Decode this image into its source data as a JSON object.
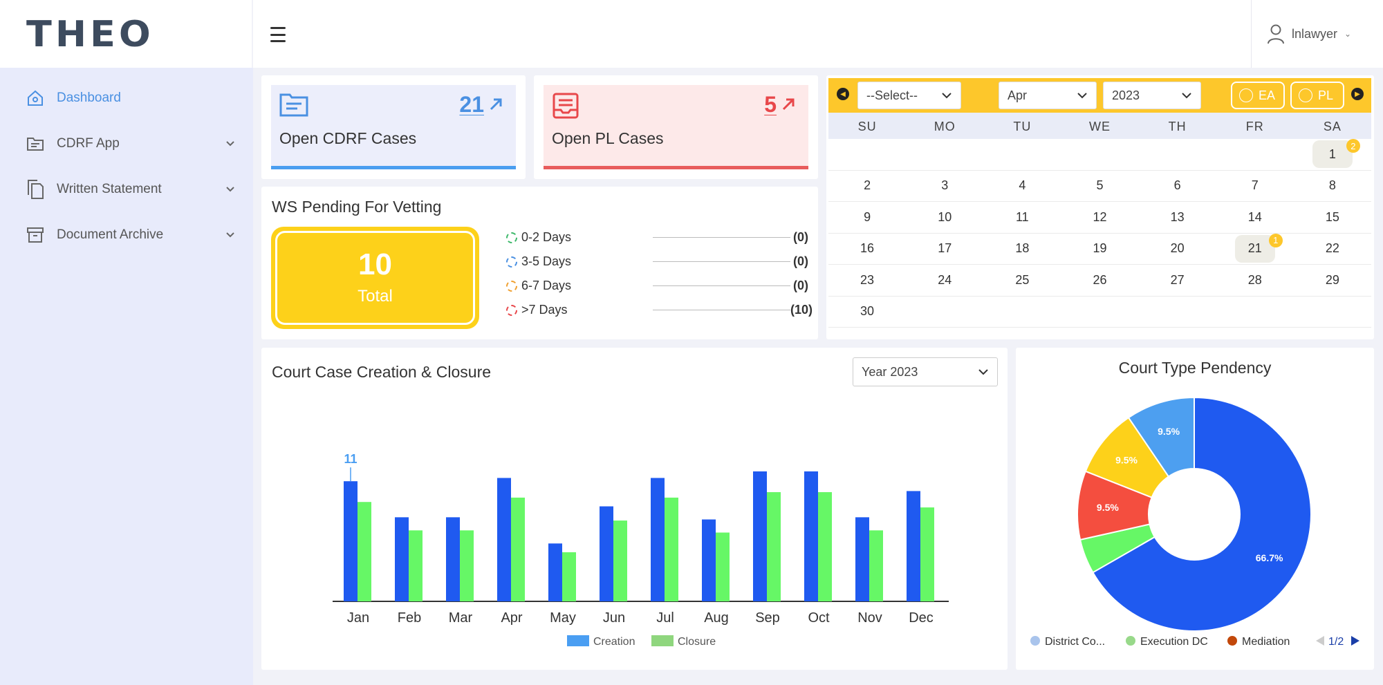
{
  "app": {
    "logo": "THEO"
  },
  "header": {
    "user_name": "lnlawyer"
  },
  "sidebar": {
    "items": [
      {
        "label": "Dashboard"
      },
      {
        "label": "CDRF App"
      },
      {
        "label": "Written Statement"
      },
      {
        "label": "Document Archive"
      }
    ]
  },
  "stats": {
    "cdrf": {
      "count": "21",
      "title": "Open CDRF Cases",
      "color": "#4a90e2"
    },
    "pl": {
      "count": "5",
      "title": "Open PL Cases",
      "color": "#e8474a"
    }
  },
  "ws": {
    "title": "WS Pending For Vetting",
    "total": "10",
    "total_label": "Total",
    "rows": [
      {
        "label": "0-2 Days",
        "value": "(0)",
        "color": "#3db86a"
      },
      {
        "label": "3-5 Days",
        "value": "(0)",
        "color": "#4a90e2"
      },
      {
        "label": "6-7 Days",
        "value": "(0)",
        "color": "#f0a030"
      },
      {
        "label": ">7 Days",
        "value": "(10)",
        "color": "#e8474a"
      }
    ]
  },
  "calendar": {
    "select_placeholder": "--Select--",
    "month": "Apr",
    "year": "2023",
    "pill_ea": "EA",
    "pill_pl": "PL",
    "weekdays": [
      "SU",
      "MO",
      "TU",
      "WE",
      "TH",
      "FR",
      "SA"
    ],
    "weeks": [
      [
        "",
        "",
        "",
        "",
        "",
        "",
        "1"
      ],
      [
        "2",
        "3",
        "4",
        "5",
        "6",
        "7",
        "8"
      ],
      [
        "9",
        "10",
        "11",
        "12",
        "13",
        "14",
        "15"
      ],
      [
        "16",
        "17",
        "18",
        "19",
        "20",
        "21",
        "22"
      ],
      [
        "23",
        "24",
        "25",
        "26",
        "27",
        "28",
        "29"
      ],
      [
        "30",
        "",
        "",
        "",
        "",
        "",
        ""
      ]
    ],
    "badges": {
      "1": "2",
      "21": "1"
    }
  },
  "bar_chart": {
    "title": "Court Case Creation & Closure",
    "year_select": "Year 2023"
  },
  "pie_chart": {
    "title": "Court Type Pendency",
    "pager": "1/2"
  },
  "chart_data": [
    {
      "type": "bar",
      "title": "Court Case Creation & Closure",
      "categories": [
        "Jan",
        "Feb",
        "Mar",
        "Apr",
        "May",
        "Jun",
        "Jul",
        "Aug",
        "Sep",
        "Oct",
        "Nov",
        "Dec"
      ],
      "series": [
        {
          "name": "Creation",
          "values": [
            11,
            7.7,
            7.7,
            11.3,
            5.3,
            8.7,
            11.3,
            7.5,
            11.9,
            11.9,
            7.7,
            10.1
          ],
          "color": "#1f5af0"
        },
        {
          "name": "Closure",
          "values": [
            9.1,
            6.5,
            6.5,
            9.5,
            4.5,
            7.4,
            9.5,
            6.3,
            10,
            10,
            6.5,
            8.6
          ],
          "color": "#66f766"
        }
      ],
      "data_labels": [
        {
          "category": "Jan",
          "series": "Creation",
          "text": "11"
        }
      ],
      "legend_colors": {
        "Creation": "#4a9ef2",
        "Closure": "#8fd67e"
      }
    },
    {
      "type": "pie",
      "title": "Court Type Pendency",
      "slices": [
        {
          "label": "",
          "value": 66.7,
          "text": "66.7%",
          "color": "#1f5af0"
        },
        {
          "label": "",
          "value": 4.8,
          "text": "",
          "color": "#66f766"
        },
        {
          "label": "",
          "value": 9.5,
          "text": "9.5%",
          "color": "#f44e3f"
        },
        {
          "label": "",
          "value": 9.5,
          "text": "9.5%",
          "color": "#fdd11a"
        },
        {
          "label": "",
          "value": 9.5,
          "text": "9.5%",
          "color": "#4d9ff0"
        }
      ],
      "legend": [
        {
          "name": "District Co...",
          "color": "#a9c4ec"
        },
        {
          "name": "Execution DC",
          "color": "#98d98a"
        },
        {
          "name": "Mediation",
          "color": "#c2480a"
        }
      ]
    }
  ]
}
